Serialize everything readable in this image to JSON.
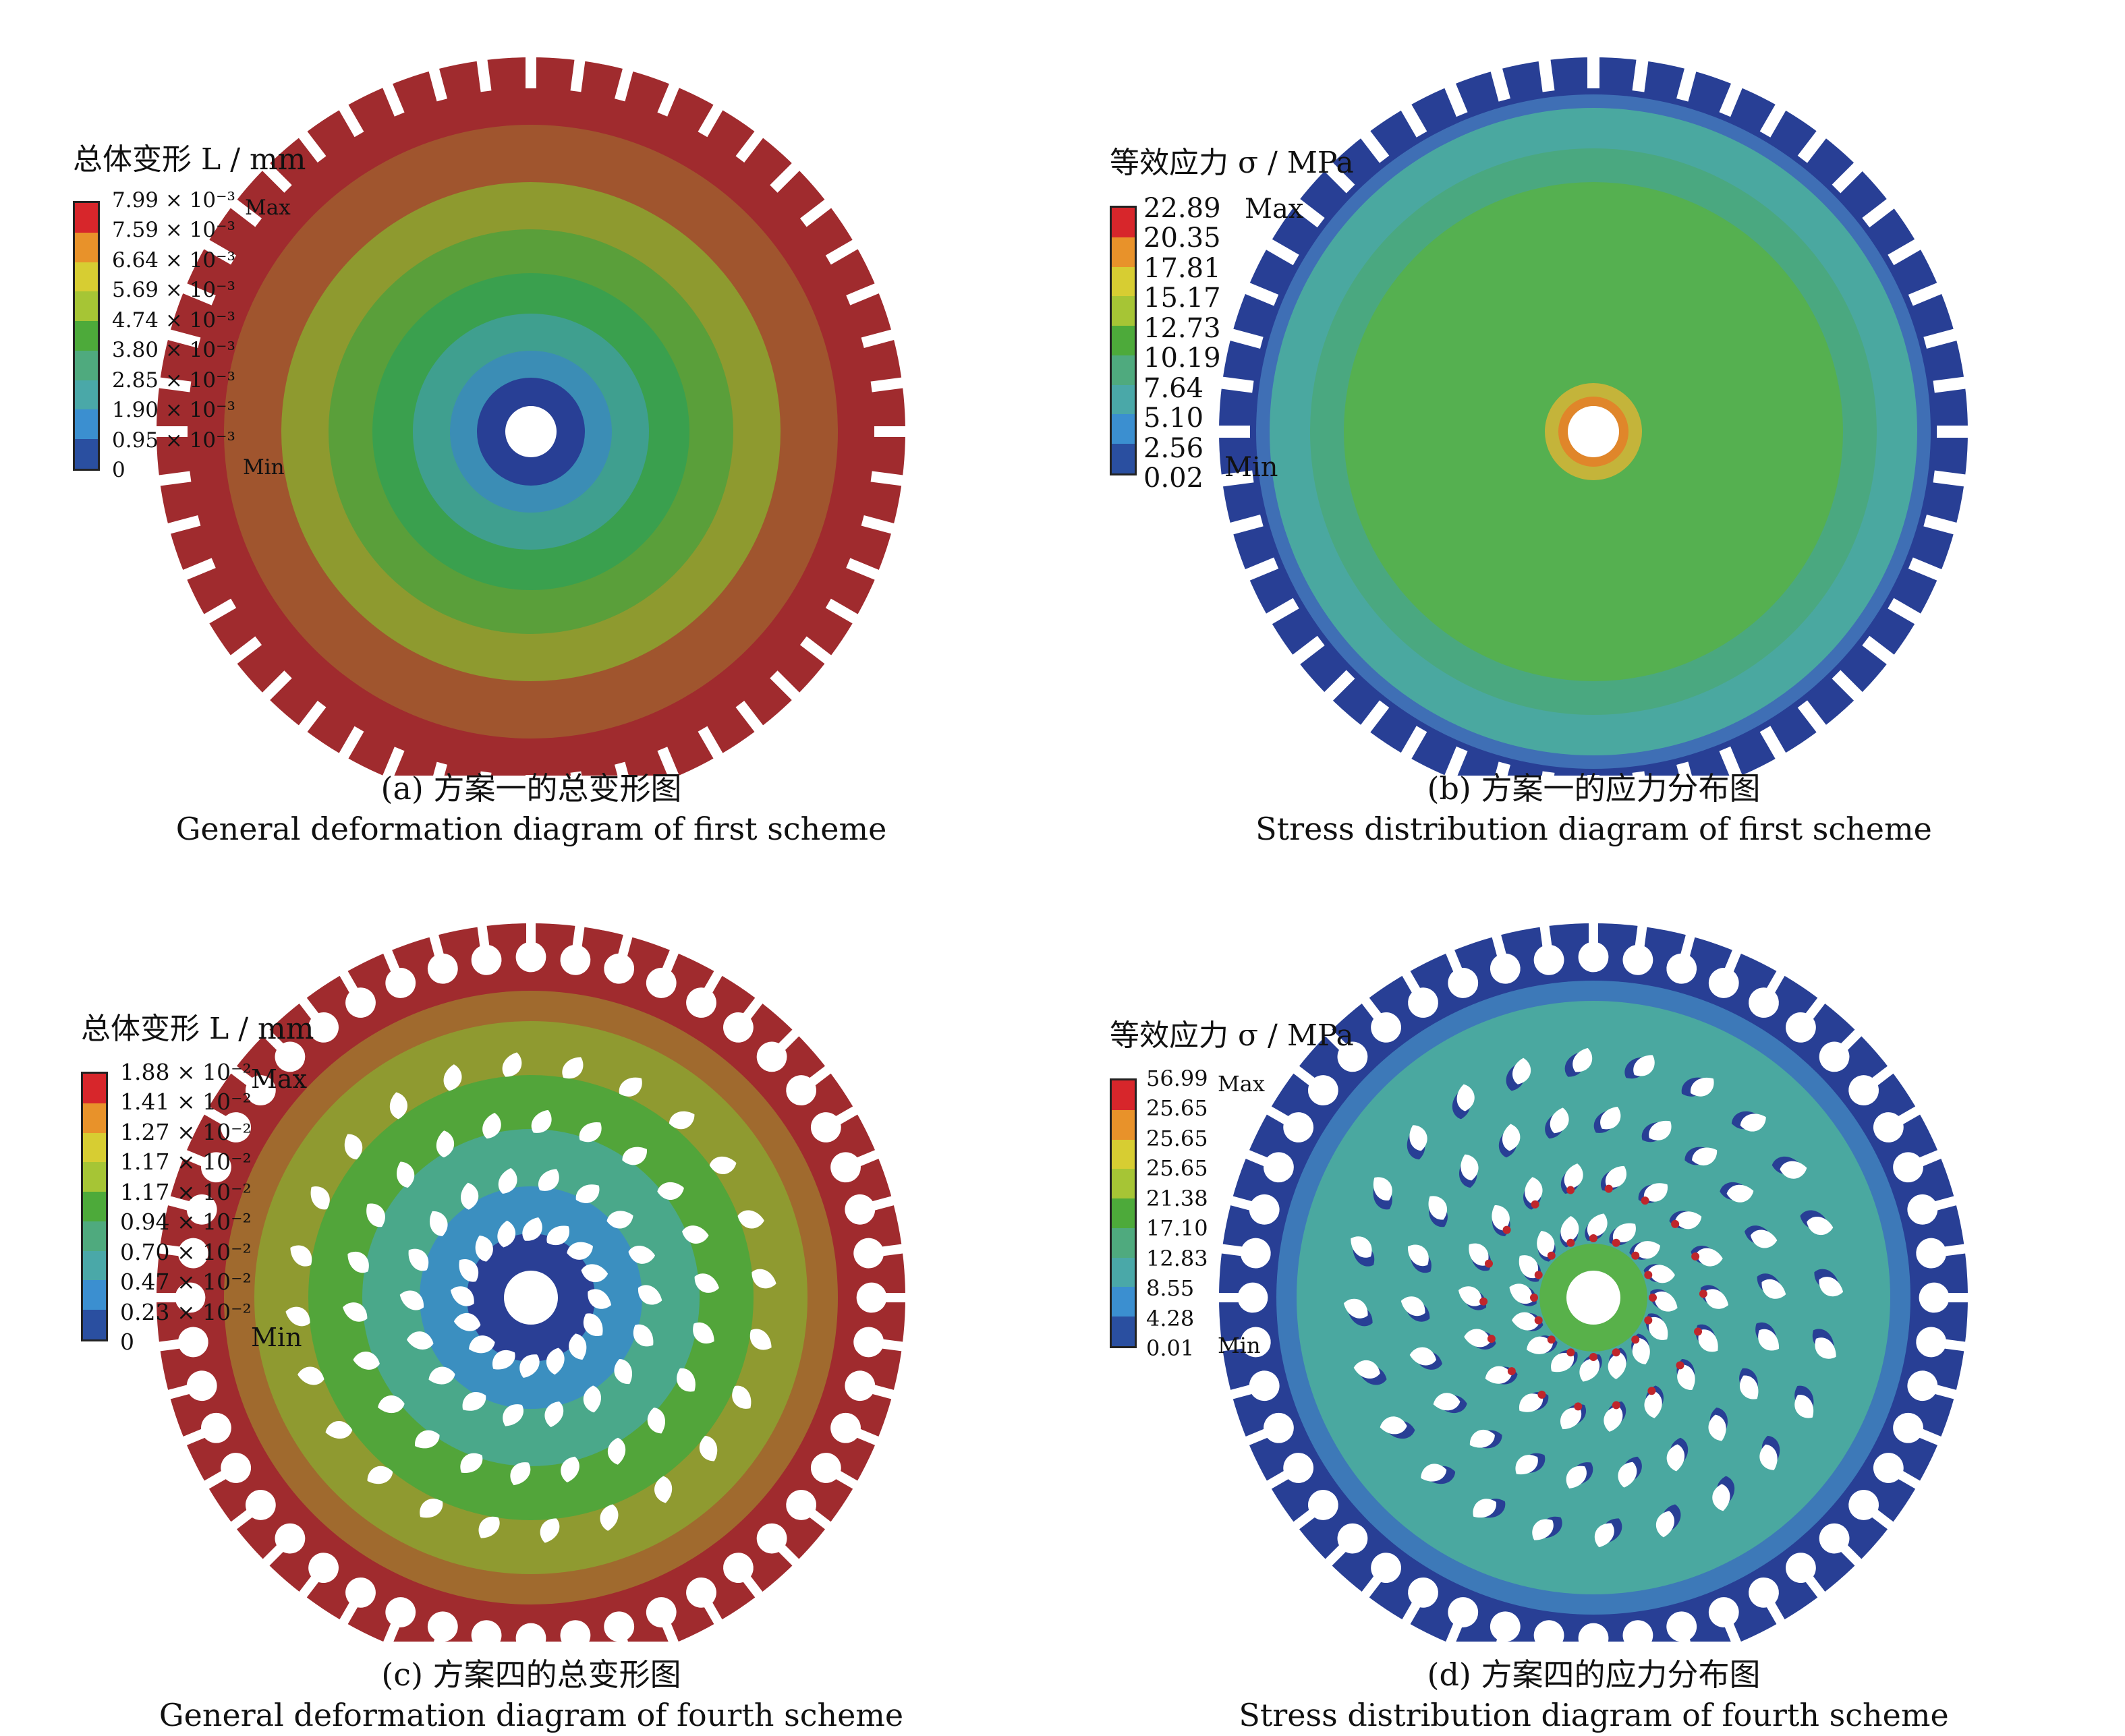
{
  "panels": [
    {
      "id": "a",
      "type": "deformation",
      "legend_title": "总体变形 L / mm",
      "tick_labels": [
        "7.99 × 10⁻³",
        "7.59 × 10⁻³",
        "6.64 × 10⁻³",
        "5.69 × 10⁻³",
        "4.74 × 10⁻³",
        "3.80 × 10⁻³",
        "2.85 × 10⁻³",
        "1.90 × 10⁻³",
        "0.95 × 10⁻³",
        "0"
      ],
      "max_label": "Max",
      "min_label": "Min",
      "caption_cn": "(a) 方案一的总变形图",
      "caption_en": "General deformation diagram of first scheme"
    },
    {
      "id": "b",
      "type": "stress",
      "legend_title": "等效应力 σ / MPa",
      "tick_labels": [
        "22.89",
        "20.35",
        "17.81",
        "15.17",
        "12.73",
        "10.19",
        "7.64",
        "5.10",
        "2.56",
        "0.02"
      ],
      "max_label": "Max",
      "min_label": "Min",
      "caption_cn": "(b) 方案一的应力分布图",
      "caption_en": "Stress distribution diagram of first scheme"
    },
    {
      "id": "c",
      "type": "deformation",
      "legend_title": "总体变形 L / mm",
      "tick_labels": [
        "1.88 × 10⁻²",
        "1.41 × 10⁻²",
        "1.27 × 10⁻²",
        "1.17 × 10⁻²",
        "1.17 × 10⁻²",
        "0.94 × 10⁻²",
        "0.70 × 10⁻²",
        "0.47 × 10⁻²",
        "0.23 × 10⁻²",
        "0"
      ],
      "max_label": "Max",
      "min_label": "Min",
      "caption_cn": "(c) 方案四的总变形图",
      "caption_en": "General deformation diagram of fourth scheme"
    },
    {
      "id": "d",
      "type": "stress",
      "legend_title": "等效应力 σ / MPa",
      "tick_labels": [
        "56.99",
        "25.65",
        "25.65",
        "25.65",
        "21.38",
        "17.10",
        "12.83",
        "8.55",
        "4.28",
        "0.01"
      ],
      "max_label": "Max",
      "min_label": "Min",
      "caption_cn": "(d) 方案四的应力分布图",
      "caption_en": "Stress distribution diagram of fourth scheme"
    }
  ],
  "colors": {
    "scale": [
      "#d7262b",
      "#e8922a",
      "#d7cd32",
      "#a6c535",
      "#4daa3a",
      "#4faa7e",
      "#4aa8a8",
      "#3b8fd0",
      "#2a4fa0"
    ],
    "deformation_max": "#a02b2e",
    "stress_min": "#283f95",
    "stress_ring": "#3f6fb5",
    "stress_body": "#4aa8a0",
    "stress_body2": "#4aa880",
    "stress_mid": "#55b050",
    "stress_hot": "#c0262b"
  }
}
